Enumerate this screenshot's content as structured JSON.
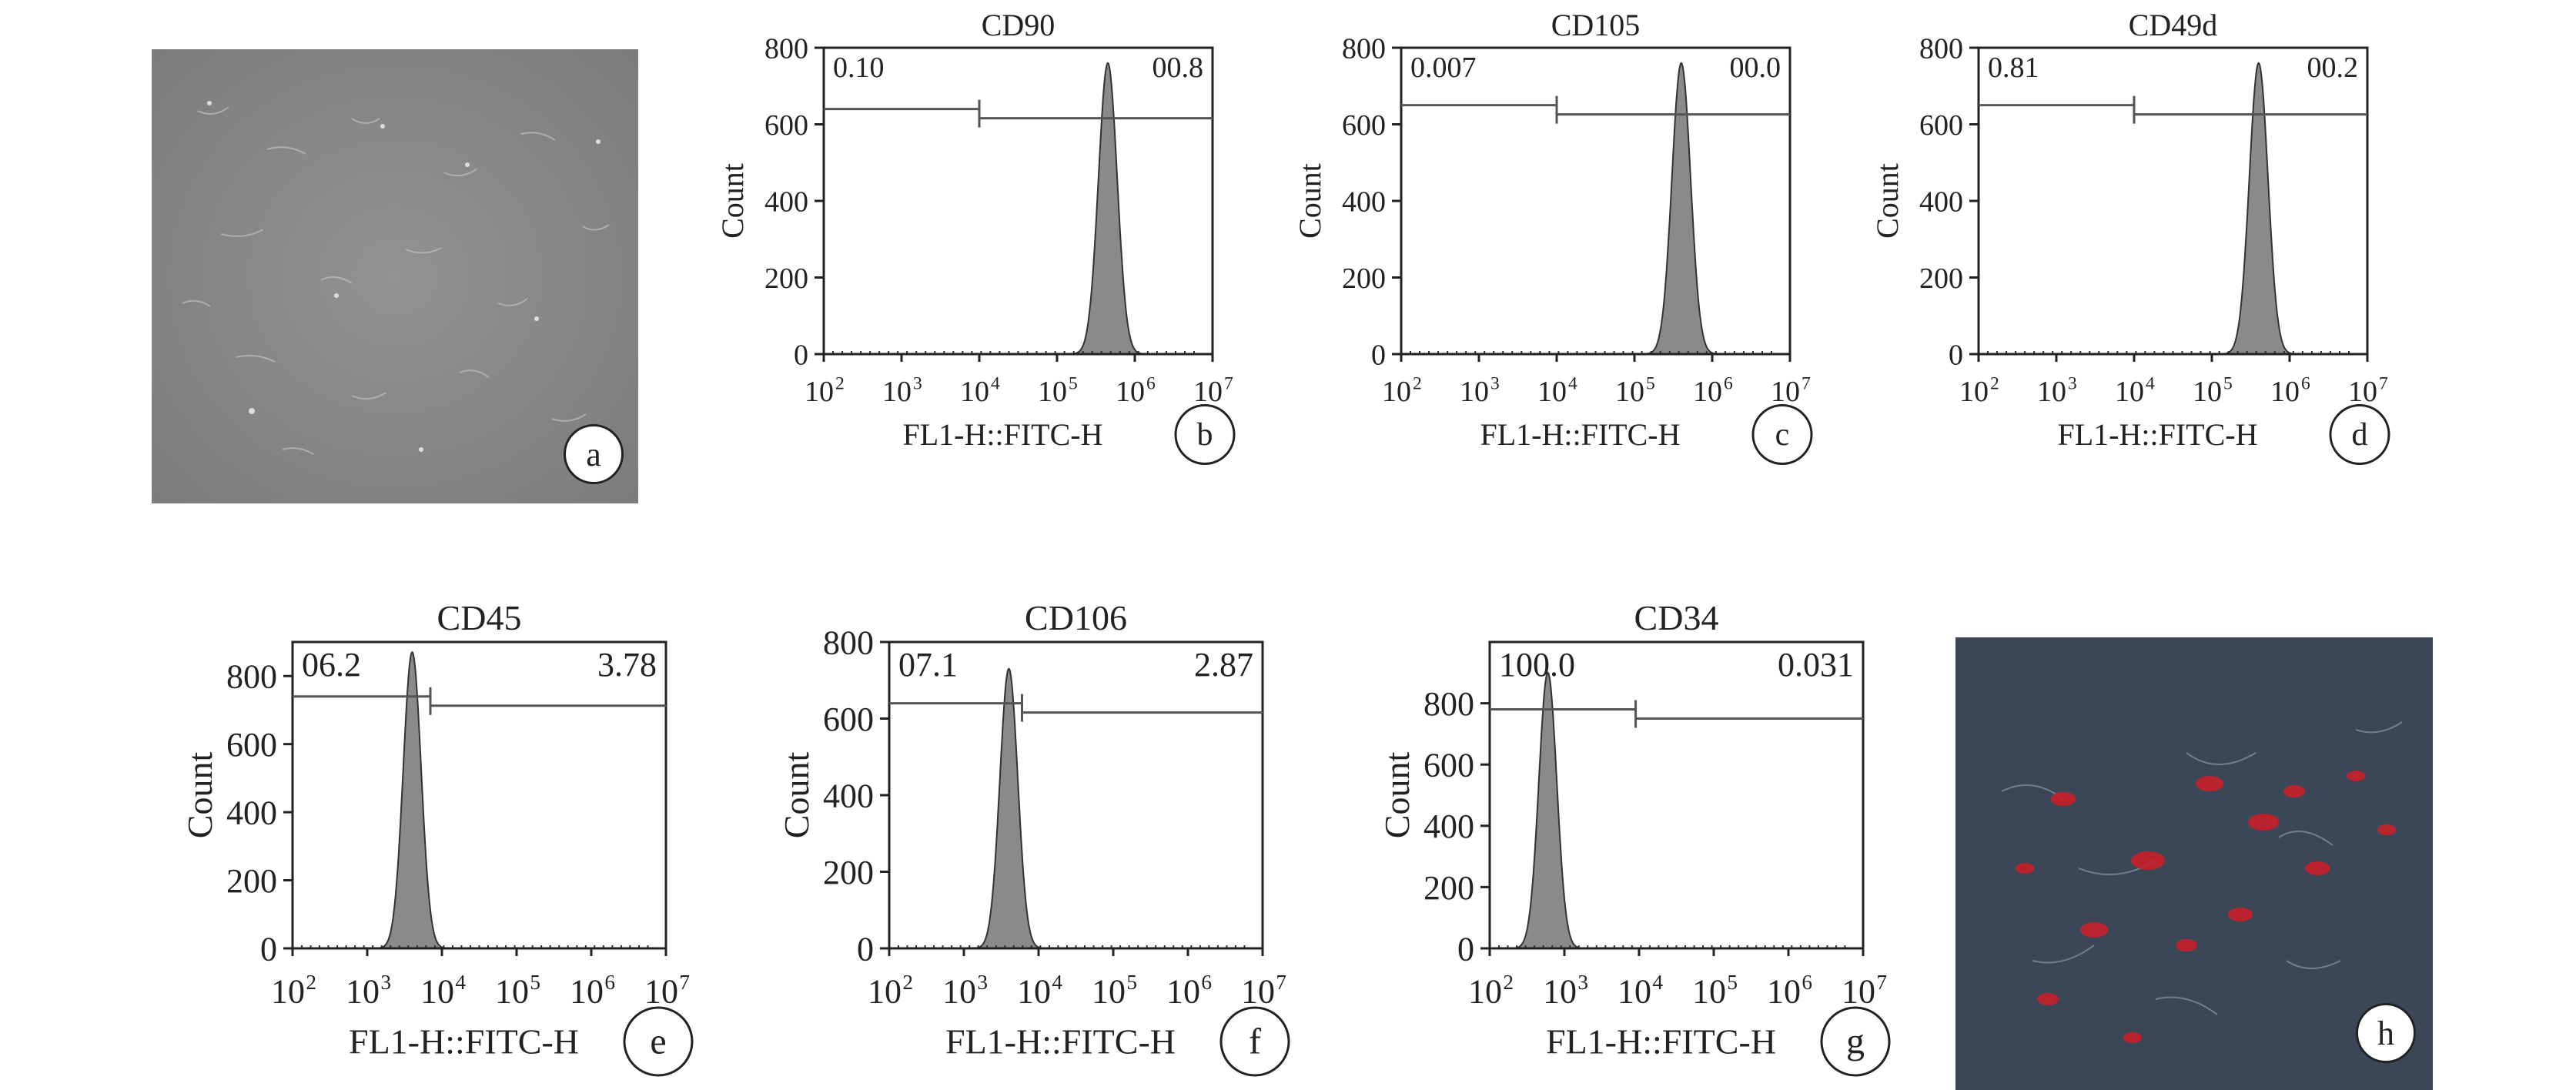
{
  "panels": {
    "a": {
      "badge": "a"
    },
    "h": {
      "badge": "h"
    }
  },
  "chart_data": [
    {
      "id": "b",
      "type": "area",
      "badge": "b",
      "title": "CD90",
      "xlabel": "FL1-H::FITC-H",
      "ylabel": "Count",
      "xscale": "log",
      "xlim": [
        100,
        10000000
      ],
      "ylim": [
        0,
        800
      ],
      "x_ticks": [
        "10",
        "10",
        "10",
        "10",
        "10",
        "10"
      ],
      "x_tick_exps": [
        "2",
        "3",
        "4",
        "5",
        "6",
        "7"
      ],
      "y_ticks": [
        "800",
        "600",
        "400",
        "200",
        "0"
      ],
      "gate_left": "0.10",
      "gate_right": "00.8",
      "gate_split": 10000,
      "gate_level": 640,
      "peak_x": 450000,
      "peak_y": 760,
      "peak_width": 0.12
    },
    {
      "id": "c",
      "type": "area",
      "badge": "c",
      "title": "CD105",
      "xlabel": "FL1-H::FITC-H",
      "ylabel": "Count",
      "xscale": "log",
      "xlim": [
        100,
        10000000
      ],
      "ylim": [
        0,
        800
      ],
      "x_ticks": [
        "10",
        "10",
        "10",
        "10",
        "10",
        "10"
      ],
      "x_tick_exps": [
        "2",
        "3",
        "4",
        "5",
        "6",
        "7"
      ],
      "y_ticks": [
        "800",
        "600",
        "400",
        "200",
        "0"
      ],
      "gate_left": "0.007",
      "gate_right": "00.0",
      "gate_split": 10000,
      "gate_level": 650,
      "peak_x": 400000,
      "peak_y": 760,
      "peak_width": 0.12
    },
    {
      "id": "d",
      "type": "area",
      "badge": "d",
      "title": "CD49d",
      "xlabel": "FL1-H::FITC-H",
      "ylabel": "Count",
      "xscale": "log",
      "xlim": [
        100,
        10000000
      ],
      "ylim": [
        0,
        800
      ],
      "x_ticks": [
        "10",
        "10",
        "10",
        "10",
        "10",
        "10"
      ],
      "x_tick_exps": [
        "2",
        "3",
        "4",
        "5",
        "6",
        "7"
      ],
      "y_ticks": [
        "800",
        "600",
        "400",
        "200",
        "0"
      ],
      "gate_left": "0.81",
      "gate_right": "00.2",
      "gate_split": 10000,
      "gate_level": 650,
      "peak_x": 400000,
      "peak_y": 760,
      "peak_width": 0.12
    },
    {
      "id": "e",
      "type": "area",
      "badge": "e",
      "title": "CD45",
      "xlabel": "FL1-H::FITC-H",
      "ylabel": "Count",
      "xscale": "log",
      "xlim": [
        100,
        10000000
      ],
      "ylim": [
        0,
        900
      ],
      "x_ticks": [
        "10",
        "10",
        "10",
        "10",
        "10",
        "10"
      ],
      "x_tick_exps": [
        "2",
        "3",
        "4",
        "5",
        "6",
        "7"
      ],
      "y_ticks": [
        "800",
        "600",
        "400",
        "200",
        "0"
      ],
      "gate_left": "06.2",
      "gate_right": "3.78",
      "gate_split": 7000,
      "gate_level": 740,
      "peak_x": 4000,
      "peak_y": 870,
      "peak_width": 0.12
    },
    {
      "id": "f",
      "type": "area",
      "badge": "f",
      "title": "CD106",
      "xlabel": "FL1-H::FITC-H",
      "ylabel": "Count",
      "xscale": "log",
      "xlim": [
        100,
        10000000
      ],
      "ylim": [
        0,
        800
      ],
      "x_ticks": [
        "10",
        "10",
        "10",
        "10",
        "10",
        "10"
      ],
      "x_tick_exps": [
        "2",
        "3",
        "4",
        "5",
        "6",
        "7"
      ],
      "y_ticks": [
        "800",
        "600",
        "400",
        "200",
        "0"
      ],
      "gate_left": "07.1",
      "gate_right": "2.87",
      "gate_split": 6000,
      "gate_level": 640,
      "peak_x": 4000,
      "peak_y": 730,
      "peak_width": 0.12
    },
    {
      "id": "g",
      "type": "area",
      "badge": "g",
      "title": "CD34",
      "xlabel": "FL1-H::FITC-H",
      "ylabel": "Count",
      "xscale": "log",
      "xlim": [
        100,
        10000000
      ],
      "ylim": [
        0,
        1000
      ],
      "x_ticks": [
        "10",
        "10",
        "10",
        "10",
        "10",
        "10"
      ],
      "x_tick_exps": [
        "2",
        "3",
        "4",
        "5",
        "6",
        "7"
      ],
      "y_ticks": [
        "800",
        "600",
        "400",
        "200",
        "0"
      ],
      "gate_left": "100.0",
      "gate_right": "0.031",
      "gate_split": 9000,
      "gate_level": 780,
      "peak_x": 600,
      "peak_y": 900,
      "peak_width": 0.12
    }
  ]
}
